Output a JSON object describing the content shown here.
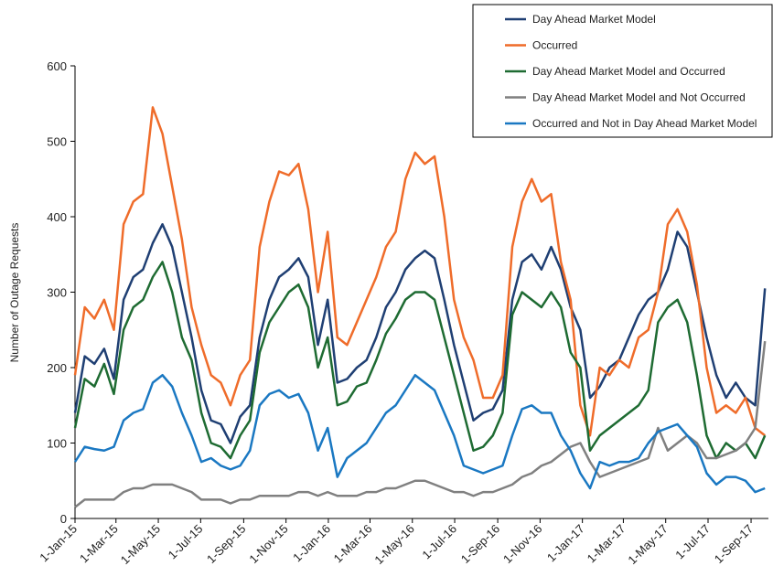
{
  "chart_data": {
    "type": "line",
    "y_label": "Number of Outage Requests",
    "x": [
      "2015-01-01",
      "2015-01-15",
      "2015-01-29",
      "2015-02-12",
      "2015-02-26",
      "2015-03-12",
      "2015-03-26",
      "2015-04-09",
      "2015-04-23",
      "2015-05-07",
      "2015-05-21",
      "2015-06-04",
      "2015-06-18",
      "2015-07-02",
      "2015-07-16",
      "2015-07-30",
      "2015-08-13",
      "2015-08-27",
      "2015-09-10",
      "2015-09-24",
      "2015-10-08",
      "2015-10-22",
      "2015-11-05",
      "2015-11-19",
      "2015-12-03",
      "2015-12-17",
      "2015-12-31",
      "2016-01-14",
      "2016-01-28",
      "2016-02-11",
      "2016-02-25",
      "2016-03-10",
      "2016-03-24",
      "2016-04-07",
      "2016-04-21",
      "2016-05-05",
      "2016-05-19",
      "2016-06-02",
      "2016-06-16",
      "2016-06-30",
      "2016-07-14",
      "2016-07-28",
      "2016-08-11",
      "2016-08-25",
      "2016-09-08",
      "2016-09-22",
      "2016-10-06",
      "2016-10-20",
      "2016-11-03",
      "2016-11-17",
      "2016-12-01",
      "2016-12-15",
      "2016-12-29",
      "2017-01-12",
      "2017-01-26",
      "2017-02-09",
      "2017-02-23",
      "2017-03-09",
      "2017-03-23",
      "2017-04-06",
      "2017-04-20",
      "2017-05-04",
      "2017-05-18",
      "2017-06-01",
      "2017-06-15",
      "2017-06-29",
      "2017-07-13",
      "2017-07-27",
      "2017-08-10",
      "2017-08-24",
      "2017-09-07",
      "2017-09-21"
    ],
    "series": [
      {
        "name": "Day Ahead Market Model",
        "color": "#1f3f73",
        "values": [
          140,
          215,
          205,
          225,
          185,
          290,
          320,
          330,
          365,
          390,
          360,
          300,
          240,
          170,
          130,
          125,
          100,
          135,
          150,
          240,
          290,
          320,
          330,
          345,
          320,
          230,
          290,
          180,
          185,
          200,
          210,
          240,
          280,
          300,
          330,
          345,
          355,
          345,
          290,
          230,
          180,
          130,
          140,
          145,
          170,
          290,
          340,
          350,
          330,
          360,
          330,
          280,
          250,
          160,
          175,
          200,
          210,
          240,
          270,
          290,
          300,
          330,
          380,
          360,
          300,
          240,
          190,
          160,
          180,
          160,
          150,
          305
        ]
      },
      {
        "name": "Occurred",
        "color": "#ef6c2a",
        "values": [
          190,
          280,
          265,
          290,
          250,
          390,
          420,
          430,
          545,
          510,
          440,
          370,
          280,
          230,
          190,
          180,
          150,
          190,
          210,
          360,
          420,
          460,
          455,
          470,
          410,
          300,
          380,
          240,
          230,
          260,
          290,
          320,
          360,
          380,
          450,
          485,
          470,
          480,
          400,
          290,
          240,
          210,
          160,
          160,
          190,
          360,
          420,
          450,
          420,
          430,
          340,
          290,
          150,
          110,
          200,
          190,
          210,
          200,
          240,
          250,
          300,
          390,
          410,
          380,
          310,
          200,
          140,
          150,
          140,
          160,
          120,
          110
        ]
      },
      {
        "name": "Day Ahead Market Model and Occurred",
        "color": "#1e6b32",
        "values": [
          120,
          185,
          175,
          205,
          165,
          250,
          280,
          290,
          320,
          340,
          300,
          240,
          210,
          140,
          100,
          95,
          80,
          110,
          130,
          220,
          260,
          280,
          300,
          310,
          280,
          200,
          240,
          150,
          155,
          175,
          180,
          210,
          245,
          265,
          290,
          300,
          300,
          290,
          240,
          190,
          140,
          90,
          95,
          110,
          140,
          270,
          300,
          290,
          280,
          300,
          280,
          220,
          200,
          90,
          110,
          120,
          130,
          140,
          150,
          170,
          260,
          280,
          290,
          260,
          190,
          110,
          80,
          100,
          90,
          100,
          80,
          110
        ]
      },
      {
        "name": "Day Ahead Market Model and Not Occurred",
        "color": "#808080",
        "values": [
          15,
          25,
          25,
          25,
          25,
          35,
          40,
          40,
          45,
          45,
          45,
          40,
          35,
          25,
          25,
          25,
          20,
          25,
          25,
          30,
          30,
          30,
          30,
          35,
          35,
          30,
          35,
          30,
          30,
          30,
          35,
          35,
          40,
          40,
          45,
          50,
          50,
          45,
          40,
          35,
          35,
          30,
          35,
          35,
          40,
          45,
          55,
          60,
          70,
          75,
          85,
          95,
          100,
          75,
          55,
          60,
          65,
          70,
          75,
          80,
          120,
          90,
          100,
          110,
          100,
          80,
          80,
          85,
          90,
          100,
          120,
          235
        ]
      },
      {
        "name": "Occurred and Not in Day Ahead Market Model",
        "color": "#1a78c2",
        "values": [
          75,
          95,
          92,
          90,
          95,
          130,
          140,
          145,
          180,
          190,
          175,
          140,
          110,
          75,
          80,
          70,
          65,
          70,
          90,
          150,
          165,
          170,
          160,
          165,
          140,
          90,
          120,
          55,
          80,
          90,
          100,
          120,
          140,
          150,
          170,
          190,
          180,
          170,
          140,
          110,
          70,
          65,
          60,
          65,
          70,
          110,
          145,
          150,
          140,
          140,
          110,
          90,
          60,
          40,
          75,
          70,
          75,
          75,
          80,
          100,
          115,
          120,
          125,
          110,
          95,
          60,
          45,
          55,
          55,
          50,
          35,
          40
        ]
      }
    ],
    "xlim": [
      "2015-01-01",
      "2017-09-26"
    ],
    "xticks": [
      {
        "value": "2015-01-01",
        "label": "1-Jan-15"
      },
      {
        "value": "2015-03-01",
        "label": "1-Mar-15"
      },
      {
        "value": "2015-05-01",
        "label": "1-May-15"
      },
      {
        "value": "2015-07-01",
        "label": "1-Jul-15"
      },
      {
        "value": "2015-09-01",
        "label": "1-Sep-15"
      },
      {
        "value": "2015-11-01",
        "label": "1-Nov-15"
      },
      {
        "value": "2016-01-01",
        "label": "1-Jan-16"
      },
      {
        "value": "2016-03-01",
        "label": "1-Mar-16"
      },
      {
        "value": "2016-05-01",
        "label": "1-May-16"
      },
      {
        "value": "2016-07-01",
        "label": "1-Jul-16"
      },
      {
        "value": "2016-09-01",
        "label": "1-Sep-16"
      },
      {
        "value": "2016-11-01",
        "label": "1-Nov-16"
      },
      {
        "value": "2017-01-01",
        "label": "1-Jan-17"
      },
      {
        "value": "2017-03-01",
        "label": "1-Mar-17"
      },
      {
        "value": "2017-05-01",
        "label": "1-May-17"
      },
      {
        "value": "2017-07-01",
        "label": "1-Jul-17"
      },
      {
        "value": "2017-09-01",
        "label": "1-Sep-17"
      }
    ],
    "ylim": [
      0,
      600
    ],
    "yticks": [
      0,
      100,
      200,
      300,
      400,
      500,
      600
    ],
    "legend": "upper right"
  }
}
